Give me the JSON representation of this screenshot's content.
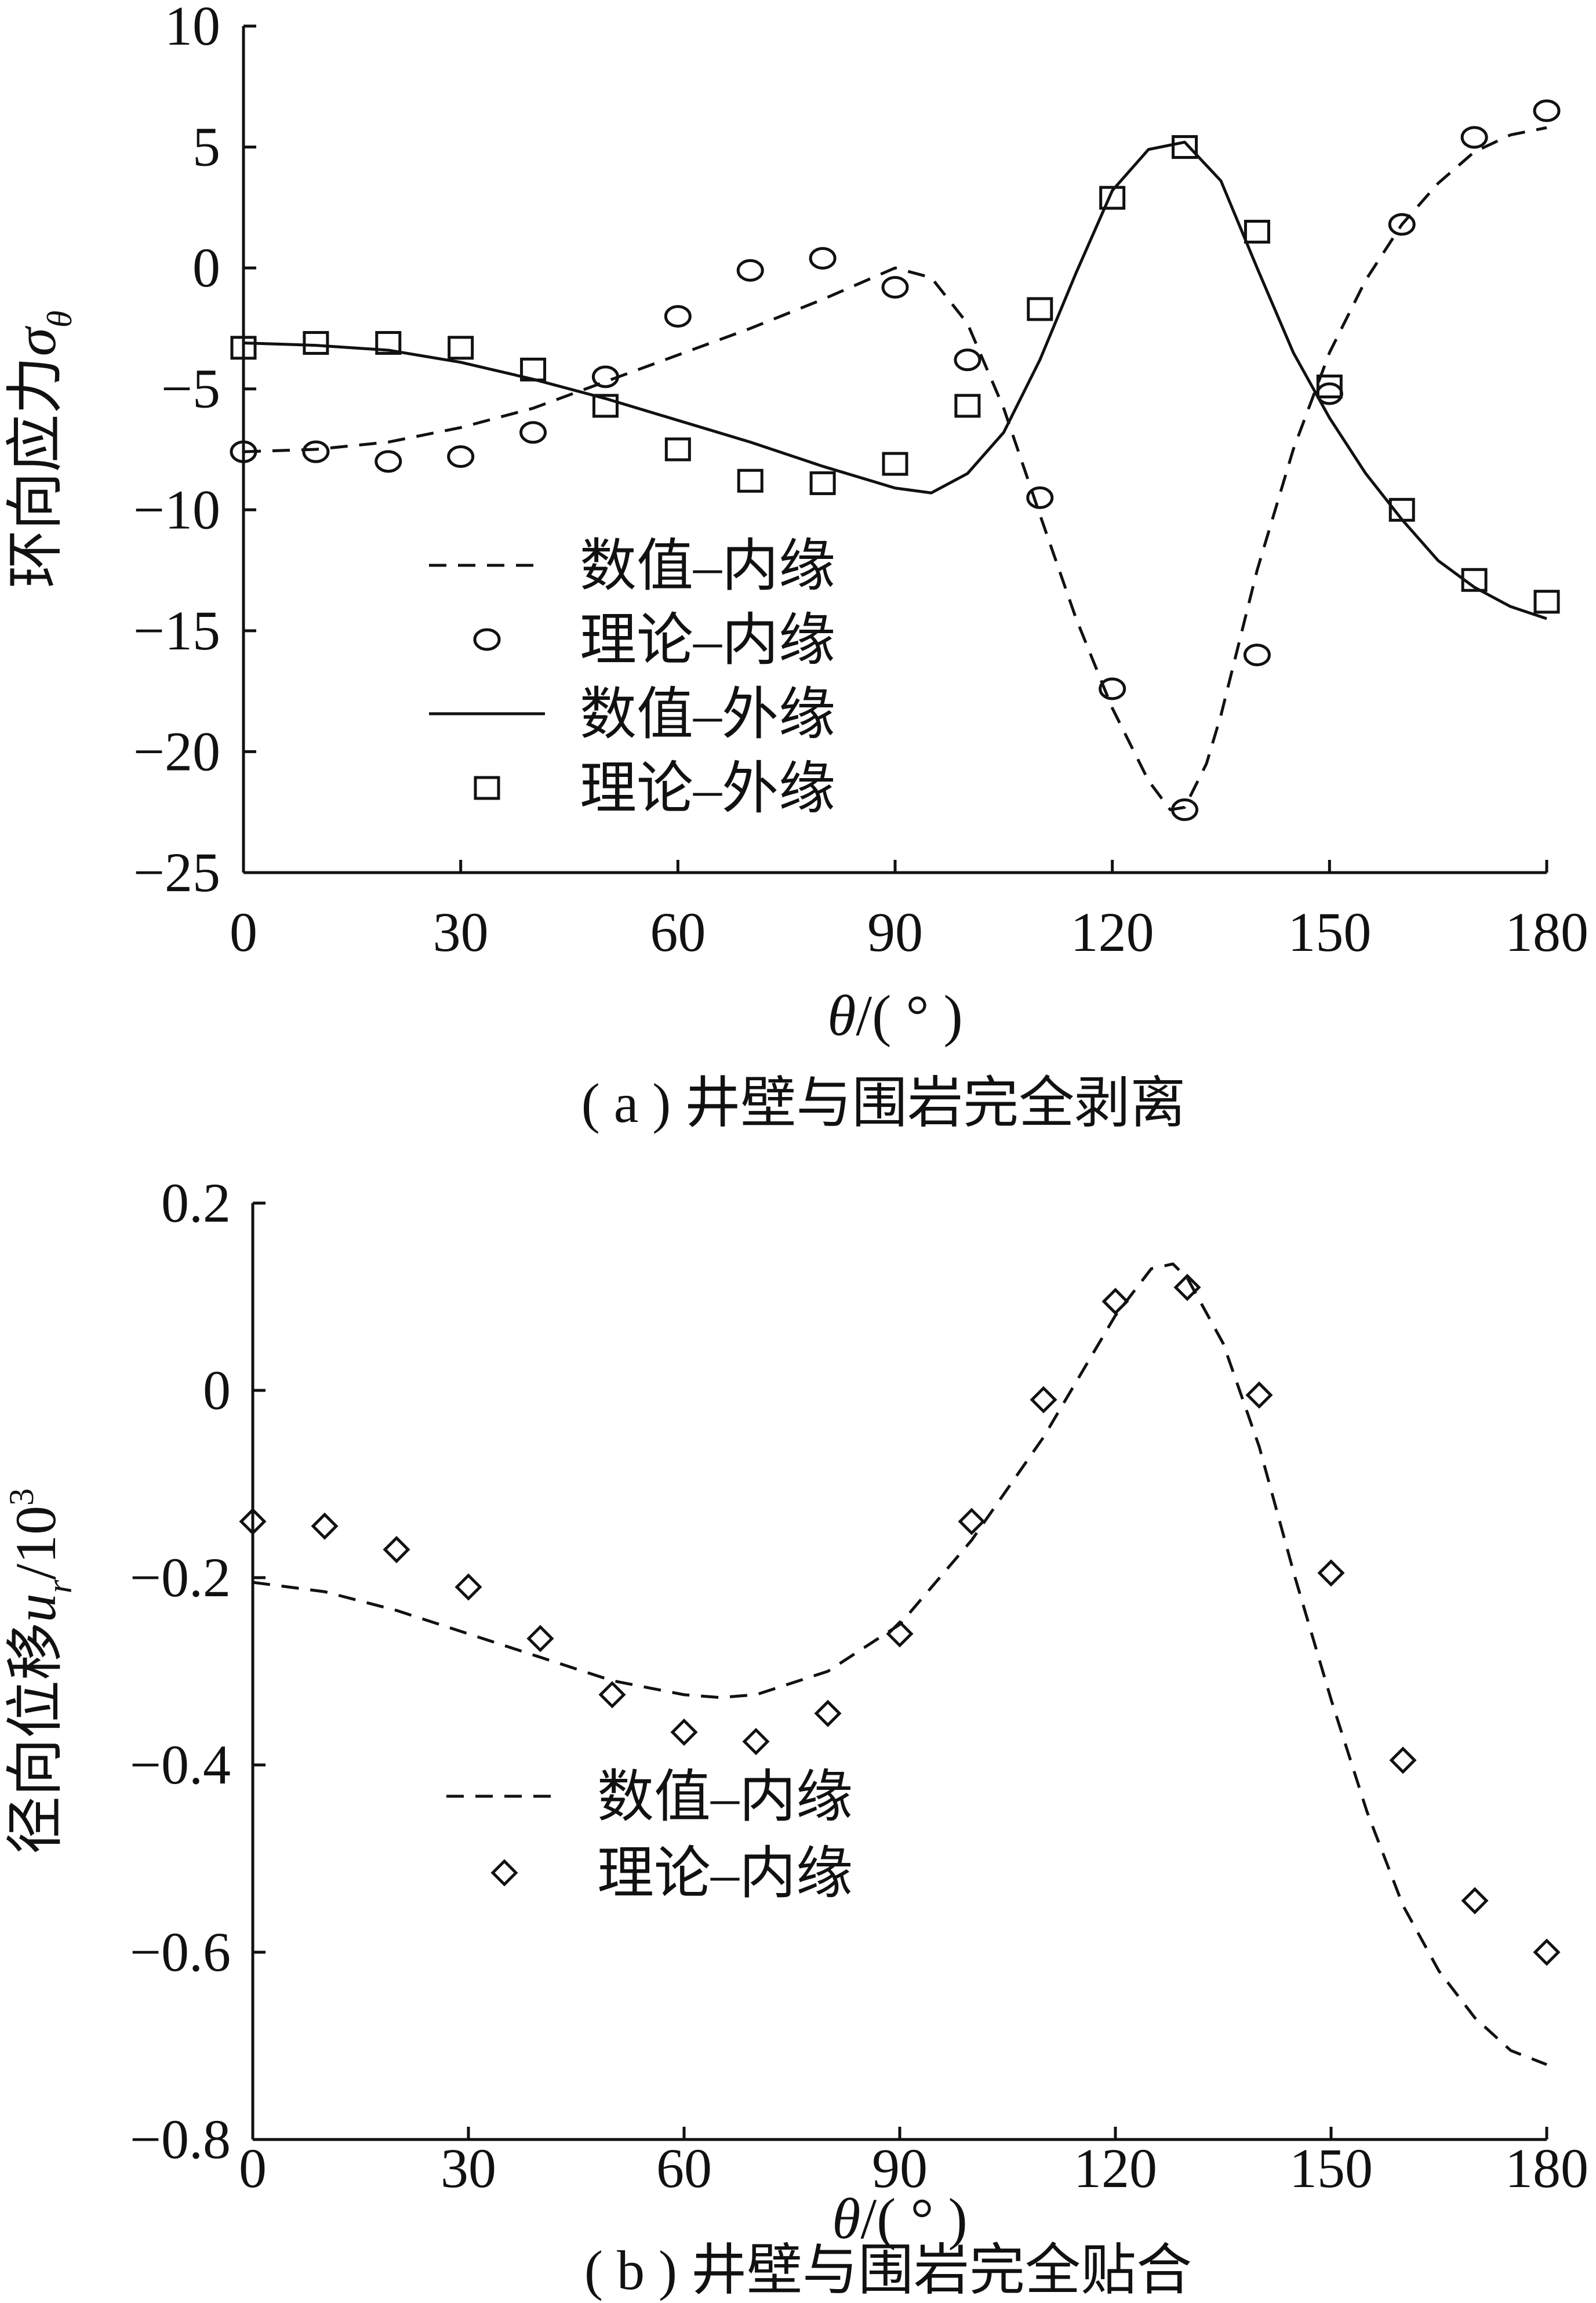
{
  "chart_data": [
    {
      "type": "line",
      "caption": "( a ) 井壁与围岩完全剥离",
      "ylabel_text": "环向应力",
      "ylabel_symbol": "σ",
      "ylabel_subscript": "θ",
      "xlabel_symbol": "θ",
      "xlabel_unit": "/( ° )",
      "xlim": [
        0,
        180
      ],
      "ylim": [
        -25,
        10
      ],
      "xticks": [
        0,
        30,
        60,
        90,
        120,
        150,
        180
      ],
      "xtick_labels": [
        "0",
        "30",
        "60",
        "90",
        "120",
        "150",
        "180"
      ],
      "yticks": [
        10,
        5,
        0,
        -5,
        -10,
        -15,
        -20,
        -25
      ],
      "ytick_labels": [
        "10",
        "5",
        "0",
        "−5",
        "−10",
        "−15",
        "−20",
        "−25"
      ],
      "legend_position": "center-left",
      "series": [
        {
          "name": "数值–内缘",
          "style": "dashed",
          "x": [
            0,
            10,
            20,
            30,
            40,
            50,
            60,
            70,
            80,
            90,
            95,
            100,
            105,
            110,
            115,
            120,
            125,
            128,
            130,
            133,
            135,
            140,
            145,
            150,
            155,
            160,
            165,
            170,
            175,
            180
          ],
          "y": [
            -7.6,
            -7.5,
            -7.2,
            -6.6,
            -5.8,
            -4.7,
            -3.6,
            -2.5,
            -1.3,
            0.0,
            -0.4,
            -2.3,
            -5.8,
            -10.2,
            -14.5,
            -18.2,
            -21.2,
            -22.4,
            -22.3,
            -20.5,
            -18.5,
            -12.5,
            -7.5,
            -3.5,
            -0.5,
            1.8,
            3.5,
            4.8,
            5.5,
            5.8
          ]
        },
        {
          "name": "理论–内缘",
          "marker": "circle",
          "x": [
            0,
            10,
            20,
            30,
            40,
            50,
            60,
            70,
            80,
            90,
            100,
            110,
            120,
            130,
            140,
            150,
            160,
            170,
            180
          ],
          "y": [
            -7.6,
            -7.6,
            -8.0,
            -7.8,
            -6.8,
            -4.5,
            -2.0,
            -0.1,
            0.4,
            -0.8,
            -3.8,
            -9.5,
            -17.4,
            -22.4,
            -16.0,
            -5.2,
            1.8,
            5.4,
            6.5
          ]
        },
        {
          "name": "数值–外缘",
          "style": "solid",
          "x": [
            0,
            10,
            20,
            30,
            40,
            50,
            60,
            70,
            80,
            90,
            95,
            100,
            105,
            110,
            115,
            120,
            125,
            130,
            135,
            140,
            145,
            150,
            155,
            160,
            165,
            170,
            175,
            180
          ],
          "y": [
            -3.1,
            -3.2,
            -3.4,
            -3.9,
            -4.6,
            -5.4,
            -6.3,
            -7.2,
            -8.2,
            -9.1,
            -9.3,
            -8.5,
            -6.8,
            -3.8,
            -0.2,
            3.2,
            4.9,
            5.2,
            3.6,
            0.0,
            -3.5,
            -6.2,
            -8.5,
            -10.4,
            -12.1,
            -13.2,
            -14.0,
            -14.5
          ]
        },
        {
          "name": "理论–外缘",
          "marker": "square",
          "x": [
            0,
            10,
            20,
            30,
            40,
            50,
            60,
            70,
            80,
            90,
            100,
            110,
            120,
            130,
            140,
            150,
            160,
            170,
            180
          ],
          "y": [
            -3.3,
            -3.1,
            -3.1,
            -3.3,
            -4.2,
            -5.7,
            -7.5,
            -8.8,
            -8.9,
            -8.1,
            -5.7,
            -1.7,
            2.9,
            5.0,
            1.5,
            -4.9,
            -10.0,
            -12.9,
            -13.8
          ]
        }
      ]
    },
    {
      "type": "line",
      "caption": "( b ) 井壁与围岩完全贴合",
      "ylabel_text": "径向位移",
      "ylabel_symbol": "u",
      "ylabel_subscript": "r",
      "ylabel_suffix": "/10",
      "ylabel_superscript": "3",
      "xlabel_symbol": "θ",
      "xlabel_unit": "/( ° )",
      "xlim": [
        0,
        180
      ],
      "ylim": [
        -0.8,
        0.2
      ],
      "xticks": [
        0,
        30,
        60,
        90,
        120,
        150,
        180
      ],
      "xtick_labels": [
        "0",
        "30",
        "60",
        "90",
        "120",
        "150",
        "180"
      ],
      "yticks": [
        0.2,
        0,
        -0.2,
        -0.4,
        -0.6,
        -0.8
      ],
      "ytick_labels": [
        "0.2",
        "0",
        "−0.2",
        "−0.4",
        "−0.6",
        "−0.8"
      ],
      "legend_position": "bottom-left",
      "series": [
        {
          "name": "数值–内缘",
          "style": "dashed",
          "x": [
            0,
            10,
            20,
            30,
            40,
            50,
            60,
            65,
            70,
            80,
            90,
            100,
            110,
            120,
            125,
            128,
            130,
            135,
            140,
            145,
            150,
            155,
            160,
            165,
            170,
            175,
            180
          ],
          "y": [
            -0.205,
            -0.215,
            -0.235,
            -0.26,
            -0.285,
            -0.31,
            -0.325,
            -0.328,
            -0.325,
            -0.3,
            -0.25,
            -0.16,
            -0.05,
            0.08,
            0.13,
            0.135,
            0.12,
            0.05,
            -0.06,
            -0.2,
            -0.33,
            -0.45,
            -0.55,
            -0.62,
            -0.67,
            -0.705,
            -0.72
          ]
        },
        {
          "name": "理论–内缘",
          "marker": "diamond",
          "x": [
            0,
            10,
            20,
            30,
            40,
            50,
            60,
            70,
            80,
            90,
            100,
            110,
            120,
            130,
            140,
            150,
            160,
            170,
            180
          ],
          "y": [
            -0.14,
            -0.145,
            -0.17,
            -0.21,
            -0.265,
            -0.325,
            -0.365,
            -0.375,
            -0.345,
            -0.26,
            -0.14,
            -0.01,
            0.095,
            0.11,
            -0.005,
            -0.195,
            -0.395,
            -0.545,
            -0.6
          ]
        }
      ]
    }
  ]
}
